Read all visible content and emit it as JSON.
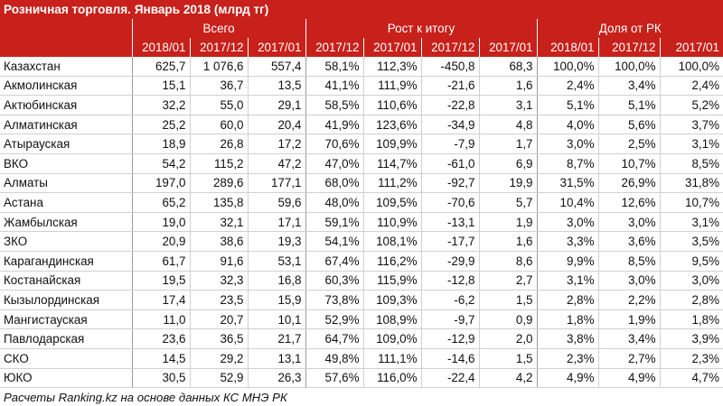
{
  "title": "Розничная торговля. Январь 2018 (млрд тг)",
  "groups": {
    "total": "Всего",
    "growth": "Рост к итогу",
    "share": "Доля от РК"
  },
  "subheaders": {
    "total": [
      "2018/01",
      "2017/12",
      "2017/01"
    ],
    "growth": [
      "2017/12",
      "2017/01",
      "2017/12",
      "2017/01"
    ],
    "share": [
      "2018/01",
      "2017/12",
      "2017/01"
    ]
  },
  "rows": [
    {
      "region": "Казахстан",
      "values": [
        "625,7",
        "1 076,6",
        "557,4",
        "58,1%",
        "112,3%",
        "-450,8",
        "68,3",
        "100,0%",
        "100,0%",
        "100,0%"
      ]
    },
    {
      "region": "Акмолинская",
      "values": [
        "15,1",
        "36,7",
        "13,5",
        "41,1%",
        "111,9%",
        "-21,6",
        "1,6",
        "2,4%",
        "3,4%",
        "2,4%"
      ]
    },
    {
      "region": "Актюбинская",
      "values": [
        "32,2",
        "55,0",
        "29,1",
        "58,5%",
        "110,6%",
        "-22,8",
        "3,1",
        "5,1%",
        "5,1%",
        "5,2%"
      ]
    },
    {
      "region": "Алматинская",
      "values": [
        "25,2",
        "60,0",
        "20,4",
        "41,9%",
        "123,6%",
        "-34,9",
        "4,8",
        "4,0%",
        "5,6%",
        "3,7%"
      ]
    },
    {
      "region": "Атырауская",
      "values": [
        "18,9",
        "26,8",
        "17,2",
        "70,6%",
        "109,9%",
        "-7,9",
        "1,7",
        "3,0%",
        "2,5%",
        "3,1%"
      ]
    },
    {
      "region": "ВКО",
      "values": [
        "54,2",
        "115,2",
        "47,2",
        "47,0%",
        "114,7%",
        "-61,0",
        "6,9",
        "8,7%",
        "10,7%",
        "8,5%"
      ]
    },
    {
      "region": "Алматы",
      "values": [
        "197,0",
        "289,6",
        "177,1",
        "68,0%",
        "111,2%",
        "-92,7",
        "19,9",
        "31,5%",
        "26,9%",
        "31,8%"
      ]
    },
    {
      "region": "Астана",
      "values": [
        "65,2",
        "135,8",
        "59,6",
        "48,0%",
        "109,5%",
        "-70,6",
        "5,7",
        "10,4%",
        "12,6%",
        "10,7%"
      ]
    },
    {
      "region": "Жамбылская",
      "values": [
        "19,0",
        "32,1",
        "17,1",
        "59,1%",
        "110,9%",
        "-13,1",
        "1,9",
        "3,0%",
        "3,0%",
        "3,1%"
      ]
    },
    {
      "region": "ЗКО",
      "values": [
        "20,9",
        "38,6",
        "19,3",
        "54,1%",
        "108,1%",
        "-17,7",
        "1,6",
        "3,3%",
        "3,6%",
        "3,5%"
      ]
    },
    {
      "region": "Карагандинская",
      "values": [
        "61,7",
        "91,6",
        "53,1",
        "67,4%",
        "116,2%",
        "-29,9",
        "8,6",
        "9,9%",
        "8,5%",
        "9,5%"
      ]
    },
    {
      "region": "Костанайская",
      "values": [
        "19,5",
        "32,3",
        "16,8",
        "60,3%",
        "115,9%",
        "-12,8",
        "2,7",
        "3,1%",
        "3,0%",
        "3,0%"
      ]
    },
    {
      "region": "Кызылординская",
      "values": [
        "17,4",
        "23,5",
        "15,9",
        "73,8%",
        "109,3%",
        "-6,2",
        "1,5",
        "2,8%",
        "2,2%",
        "2,8%"
      ]
    },
    {
      "region": "Мангистауская",
      "values": [
        "11,0",
        "20,7",
        "10,1",
        "52,9%",
        "108,9%",
        "-9,7",
        "0,9",
        "1,8%",
        "1,9%",
        "1,8%"
      ]
    },
    {
      "region": "Павлодарская",
      "values": [
        "23,6",
        "36,5",
        "21,7",
        "64,7%",
        "109,0%",
        "-12,9",
        "2,0",
        "3,8%",
        "3,4%",
        "3,9%"
      ]
    },
    {
      "region": "СКО",
      "values": [
        "14,5",
        "29,2",
        "13,1",
        "49,8%",
        "111,1%",
        "-14,6",
        "1,5",
        "2,3%",
        "2,7%",
        "2,3%"
      ]
    },
    {
      "region": "ЮКО",
      "values": [
        "30,5",
        "52,9",
        "26,3",
        "57,6%",
        "116,0%",
        "-22,4",
        "4,2",
        "4,9%",
        "4,9%",
        "4,7%"
      ]
    }
  ],
  "footer": "Расчеты Ranking.kz на основе данных КС МНЭ РК"
}
